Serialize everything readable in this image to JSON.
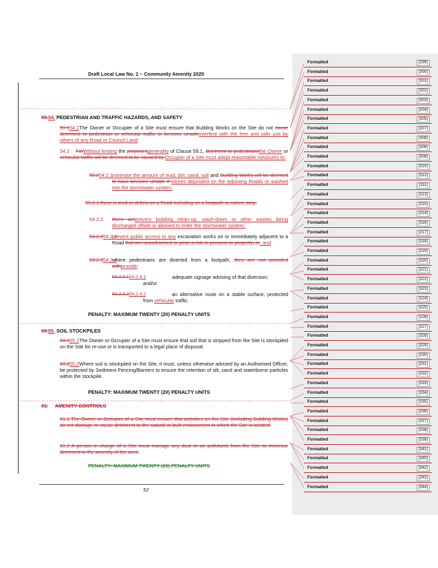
{
  "header": {
    "title": "Draft Local Law No. 1 – Community Amenity 2025"
  },
  "footer": {
    "page_number": "52"
  },
  "s54": {
    "num_del": "59.",
    "num_ins": "54.",
    "title": " PEDESTRIAN AND TRAFFIC HAZARDS, AND SAFETY",
    "p1": {
      "num_del": "59.1",
      "num_ins": "54.1",
      "a": "The Owner or Occupier of a Site must ensure that Building Works on the Site do not ",
      "del": "cause detriment to pedestrian or vehicular traffic or become unsafe",
      "ins": "interfere with the free and safe use by others of any Road or Council Land",
      "b": "."
    },
    "p2": {
      "num": "54.2",
      "del1": "For",
      "ins1": "Without limiting",
      "a": " the ",
      "del2": "purposes",
      "ins2": "generality",
      "b": " of Clause 59.1, ",
      "del3": "detriment to pedestrians",
      "ins3": "the Owner",
      "c": " or ",
      "del4": "vehicular traffic will be deemed to be caused by ",
      "ins4": "Occupier of a Site must adopt reasonable measures to:"
    },
    "p3": {
      "num_del": "59.2",
      "num_ins": "54.2.1",
      "ins1": "minimise the amount of mud, dirt, sand, soil",
      "a": " and ",
      "del1": "Building Works will be deemed to have become unsafe if ",
      "ins2": "stones deposited on the adjoining Roads or washed into the stormwater system;"
    },
    "p4": {
      "del": "59.2.1   there is mud or debris on a Road including on a footpath or nature strip;"
    },
    "p5": {
      "num": "54.2.2",
      "del1": "there are",
      "ins1": "prevent building clean-up, wash-down or other wastes being discharged offsite or allowed to enter the stormwater system;"
    },
    "p6": {
      "num_del": "59.2.2",
      "num_ins": "54.2.3",
      "ins1": "prevent public access to any",
      "a": " excavation works on or immediately adjacent to a Road ",
      "del1": "that are unauthorised or pose a risk to persons or property; or",
      "ins2": "; and"
    },
    "p7": {
      "num_del": "59.2.3",
      "num_ins": "54.2.4",
      "a": " where pedestrians are diverted from a footpath, ",
      "del1": "they are not provided with",
      "ins1": "provide",
      "b": ":"
    },
    "p8": {
      "num_del": "59.2.3.1",
      "num_ins": "54.2.4.1",
      "a": "adequate signage advising of that diversion;",
      "b": "and/or"
    },
    "p9": {
      "num_del": "59.2.3.2",
      "num_ins": "54.2.4.2",
      "a": "an alternative route on a stable surface, protected from ",
      "ins1": "vehicular",
      "b": " traffic."
    },
    "penalty": "PENALTY: MAXIMUM TWENTY (20) PENALTY UNITS"
  },
  "s55": {
    "num_del": "60.",
    "num_ins": "55.",
    "title": " SOIL STOCKPILES",
    "p1": {
      "num_del": "60.1",
      "num_ins": "55.1",
      "a": "The Owner or Occupier of a Site must ensure that soil that is stripped from the Site is stockpiled on the Site for re-use or is transported to a legal place of disposal."
    },
    "p2": {
      "num_del": "60.2",
      "num_ins": "55.2",
      "a": "Where soil is stockpiled on the Site, it must, unless otherwise advised by an Authorised Officer, be protected by Sediment Fencing/Barriers to ensure the retention of silt, sand and waterborne particles within the stockpile."
    },
    "penalty": "PENALTY: MAXIMUM TWENTY (20) PENALTY UNITS"
  },
  "s61": {
    "num_del": "61.",
    "title_del": "AMENITY CONTROLS",
    "p1_del": "61.1   The Owner or Occupier of a Site must ensure that activities on the Site (including Building Works) do not damage or cause detriment to the natural or built environment in which the Site is located.",
    "p2_del": "61.2   A person in charge of a Site must manage any dust or air pollutants from the Site to minimise detriment to the amenity of the area.",
    "penalty_del": "PENALTY: MAXIMUM TWENTY (20) PENALTY UNITS"
  },
  "markup_pane": {
    "label": "Formatted",
    "items": [
      "[299]",
      "[300]",
      "[301]",
      "[302]",
      "[303]",
      "[304]",
      "[305]",
      "[307]",
      "[308]",
      "[306]",
      "[309]",
      "[310]",
      "[312]",
      "[311]",
      "[313]",
      "[315]",
      "[314]",
      "[316]",
      "[317]",
      "[318]",
      "[319]",
      "[320]",
      "[321]",
      "[322]",
      "[323]",
      "[324]",
      "[325]",
      "[326]",
      "[327]",
      "[328]",
      "[329]",
      "[330]",
      "[331]",
      "[332]",
      "[333]",
      "[334]",
      "[335]",
      "[336]",
      "[337]",
      "[338]",
      "[339]",
      "[341]",
      "[340]",
      "[342]",
      "[343]",
      "[344]"
    ]
  }
}
